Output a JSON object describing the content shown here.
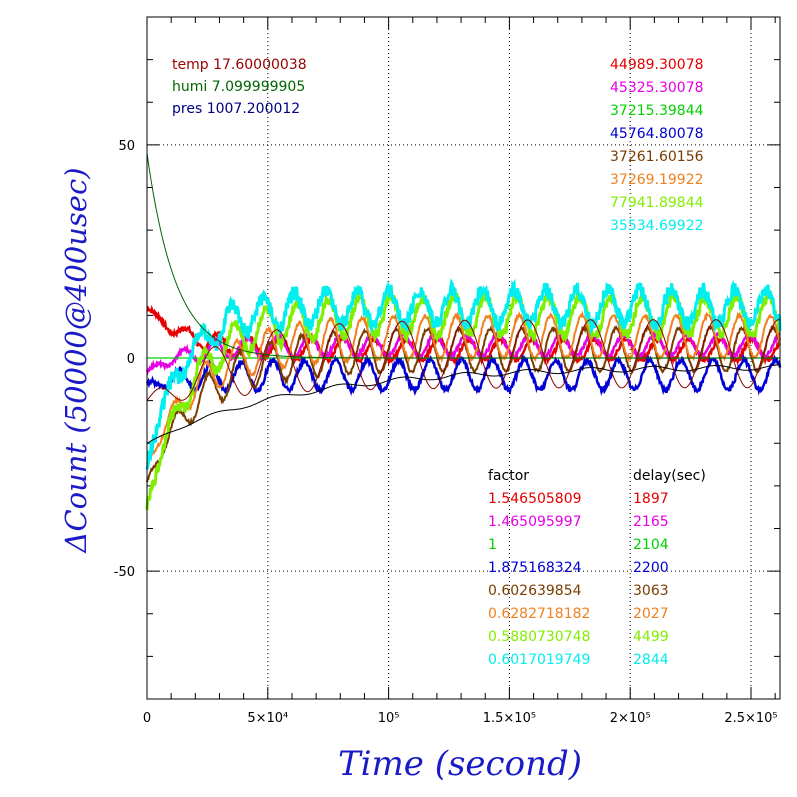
{
  "chart_data": {
    "type": "line",
    "xlabel": "Time (second)",
    "ylabel": "ΔCount (50000@400usec)",
    "xlim": [
      0,
      262000
    ],
    "ylim": [
      -80,
      80
    ],
    "grid": true,
    "x_ticks": [
      {
        "value": 0,
        "label": "0"
      },
      {
        "value": 50000,
        "label": "5×10⁴"
      },
      {
        "value": 100000,
        "label": "10⁵"
      },
      {
        "value": 150000,
        "label": "1.5×10⁵"
      },
      {
        "value": 200000,
        "label": "2×10⁵"
      },
      {
        "value": 250000,
        "label": "2.5×10⁵"
      }
    ],
    "y_ticks": [
      {
        "value": 50,
        "label": "50"
      },
      {
        "value": 0,
        "label": "0"
      },
      {
        "value": -50,
        "label": "-50"
      }
    ],
    "environment": [
      {
        "text": "temp 17.60000038",
        "color": "#990000"
      },
      {
        "text": "humi 7.099999905",
        "color": "#006600"
      },
      {
        "text": "pres 1007.200012",
        "color": "#000080"
      }
    ],
    "series": [
      {
        "value": "44989.30078",
        "factor": "1.546505809",
        "delay": "1897",
        "color": "#e60000",
        "start": 12,
        "end": 2,
        "amp": 2.5,
        "tau": 15000,
        "noise": 1.2,
        "width": 2.5
      },
      {
        "value": "45325.30078",
        "factor": "1.465095997",
        "delay": "2165",
        "color": "#e600e6",
        "start": -3,
        "end": 3,
        "amp": 2.5,
        "tau": 18000,
        "noise": 0.8,
        "width": 2.5
      },
      {
        "value": "37215.39844",
        "factor": "1",
        "delay": "2104",
        "color": "#00d200",
        "start": 0,
        "end": 0,
        "amp": 0,
        "tau": 1000,
        "noise": 0,
        "width": 1.2
      },
      {
        "value": "45764.80078",
        "factor": "1.875168324",
        "delay": "2200",
        "color": "#0000d2",
        "start": -6,
        "end": -4,
        "amp": 3.5,
        "tau": 20000,
        "noise": 1.2,
        "width": 2.5
      },
      {
        "value": "37261.60156",
        "factor": "0.602639854",
        "delay": "3063",
        "color": "#7a3d00",
        "start": -29,
        "end": 2,
        "amp": 5,
        "tau": 22000,
        "noise": 0.8,
        "width": 2
      },
      {
        "value": "37269.19922",
        "factor": "0.6282718182",
        "delay": "2027",
        "color": "#f08020",
        "start": -25,
        "end": 5,
        "amp": 5,
        "tau": 22000,
        "noise": 0.8,
        "width": 2
      },
      {
        "value": "77941.89844",
        "factor": "0.5880730748",
        "delay": "4499",
        "color": "#80ee00",
        "start": -35,
        "end": 10,
        "amp": 4.5,
        "tau": 18000,
        "noise": 2.5,
        "width": 3
      },
      {
        "value": "35534.69922",
        "factor": "0.6017019749",
        "delay": "2844",
        "color": "#00eeee",
        "start": -25,
        "end": 12,
        "amp": 4,
        "tau": 15000,
        "noise": 3.5,
        "width": 3
      }
    ],
    "factor_header": "factor",
    "delay_header": "delay(sec)"
  }
}
